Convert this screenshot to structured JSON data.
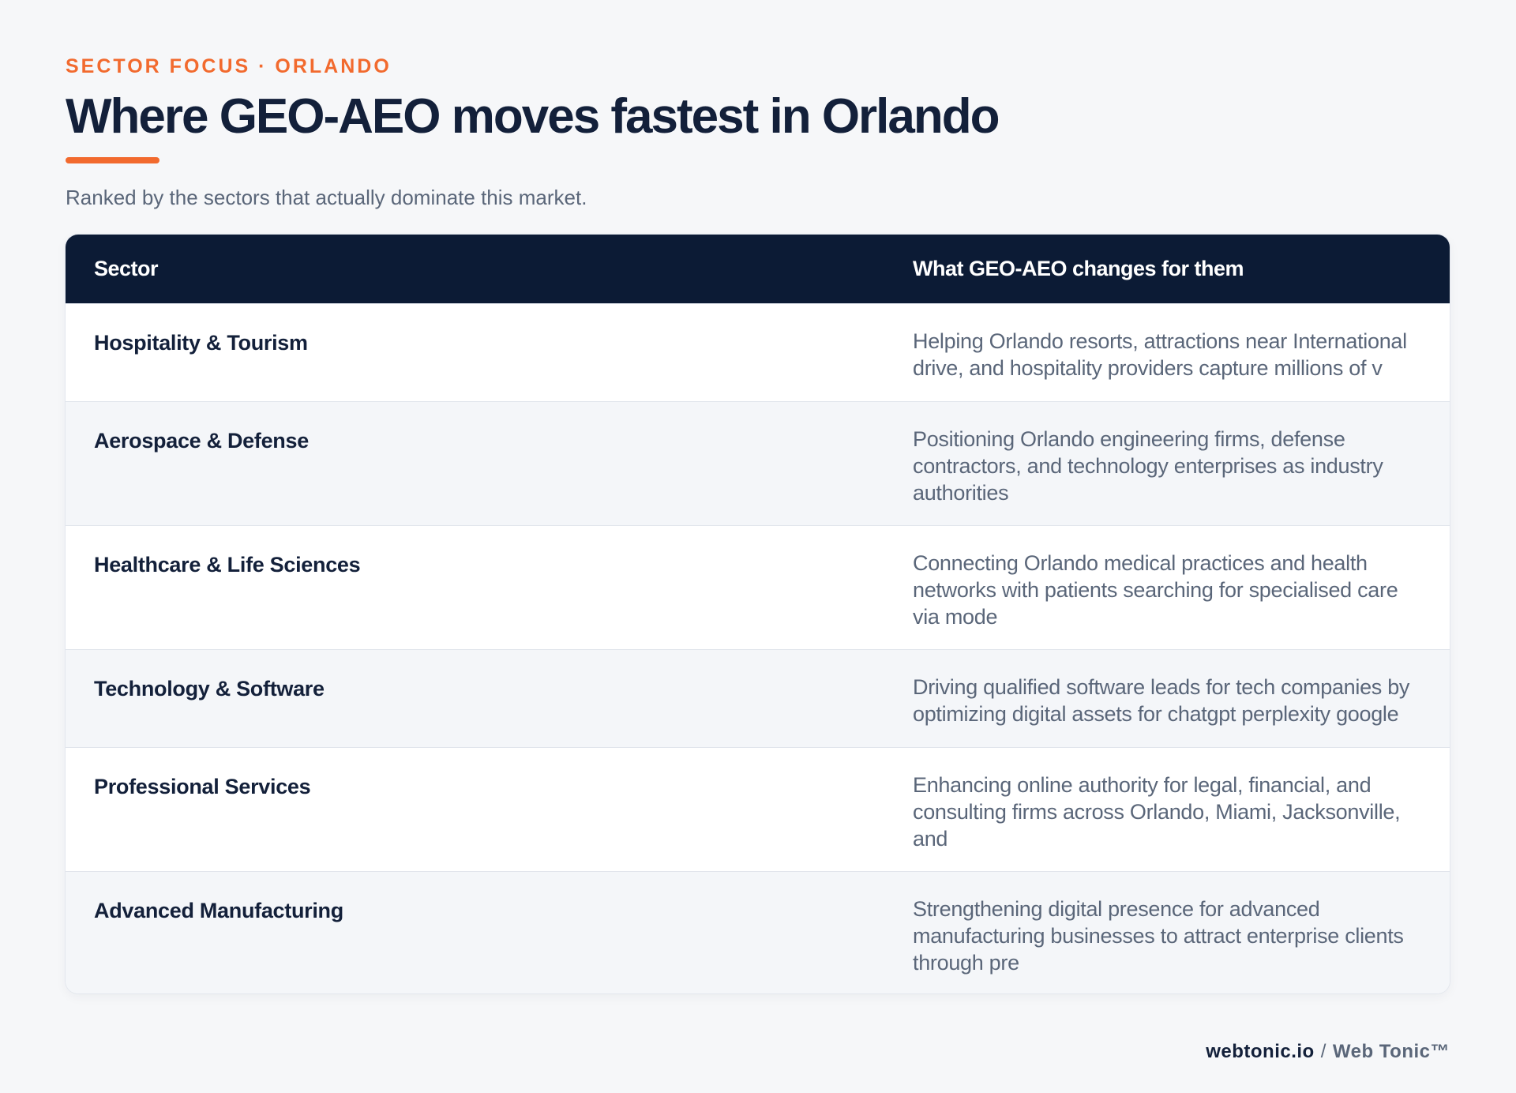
{
  "header": {
    "eyebrow": "SECTOR FOCUS · ORLANDO",
    "title": "Where GEO-AEO moves fastest in Orlando",
    "subtitle": "Ranked by the sectors that actually dominate this market."
  },
  "table": {
    "columns": [
      "Sector",
      "What GEO-AEO changes for them"
    ],
    "rows": [
      {
        "sector": "Hospitality & Tourism",
        "change": "Helping Orlando resorts, attractions near International drive, and hospitality providers capture millions of v"
      },
      {
        "sector": "Aerospace & Defense",
        "change": "Positioning Orlando engineering firms, defense contractors, and technology enterprises as industry authorities"
      },
      {
        "sector": "Healthcare & Life Sciences",
        "change": "Connecting Orlando medical practices and health networks with patients searching for specialised care via mode"
      },
      {
        "sector": "Technology & Software",
        "change": "Driving qualified software leads for tech companies by optimizing digital assets for chatgpt perplexity google"
      },
      {
        "sector": "Professional Services",
        "change": "Enhancing online authority for legal, financial, and consulting firms across Orlando, Miami, Jacksonville, and"
      },
      {
        "sector": "Advanced Manufacturing",
        "change": "Strengthening digital presence for advanced manufacturing businesses to attract enterprise clients through pre"
      }
    ]
  },
  "footer": {
    "domain": "webtonic.io",
    "separator": "/",
    "brand": "Web Tonic™"
  },
  "colors": {
    "accent": "#f26a2e",
    "navy": "#0c1b35",
    "text_dark": "#13203a",
    "text_muted": "#5a6679",
    "background": "#f6f7f9"
  }
}
